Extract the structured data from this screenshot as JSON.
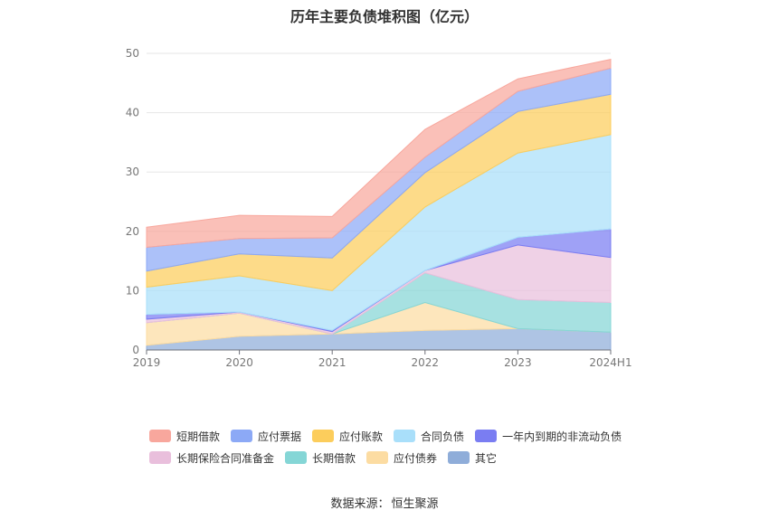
{
  "chart_data": {
    "type": "area",
    "stacked": true,
    "title": "历年主要负债堆积图（亿元）",
    "categories": [
      "2019",
      "2020",
      "2021",
      "2022",
      "2023",
      "2024H1"
    ],
    "ylim": [
      0,
      50
    ],
    "yticks": [
      0,
      10,
      20,
      30,
      40,
      50
    ],
    "grid": true,
    "legend_position": "bottom",
    "series": [
      {
        "name": "其它",
        "color": "#8fadd9",
        "values": [
          0.8,
          2.3,
          2.7,
          3.3,
          3.6,
          3.0
        ]
      },
      {
        "name": "应付债券",
        "color": "#fcdca2",
        "values": [
          3.8,
          3.9,
          0.0,
          4.7,
          0.0,
          0.0
        ]
      },
      {
        "name": "长期借款",
        "color": "#85d6d6",
        "values": [
          0.0,
          0.0,
          0.0,
          5.0,
          4.9,
          5.0
        ]
      },
      {
        "name": "长期保险合同准备金",
        "color": "#e9bfdc",
        "values": [
          0.6,
          0.2,
          0.4,
          0.4,
          9.2,
          7.6
        ]
      },
      {
        "name": "一年内到期的非流动负债",
        "color": "#7a7df2",
        "values": [
          0.8,
          0.0,
          0.2,
          0.0,
          1.3,
          4.8
        ]
      },
      {
        "name": "合同负债",
        "color": "#a9dffa",
        "values": [
          4.6,
          6.1,
          6.7,
          10.7,
          14.2,
          15.9
        ]
      },
      {
        "name": "应付账款",
        "color": "#fccd5c",
        "values": [
          2.7,
          3.7,
          5.5,
          5.8,
          7.0,
          6.8
        ]
      },
      {
        "name": "应付票据",
        "color": "#8ca9f6",
        "values": [
          4.0,
          2.6,
          3.4,
          2.6,
          3.4,
          4.4
        ]
      },
      {
        "name": "短期借款",
        "color": "#f8a79d",
        "values": [
          3.4,
          3.9,
          3.6,
          4.7,
          2.1,
          1.5
        ]
      }
    ]
  },
  "legend": {
    "row1": [
      "短期借款",
      "应付票据",
      "应付账款",
      "合同负债",
      "一年内到期的非流动负债"
    ],
    "row2": [
      "长期保险合同准备金",
      "长期借款",
      "应付债券",
      "其它"
    ],
    "colors": {
      "短期借款": "#f8a79d",
      "应付票据": "#8ca9f6",
      "应付账款": "#fccd5c",
      "合同负债": "#a9dffa",
      "一年内到期的非流动负债": "#7a7df2",
      "长期保险合同准备金": "#e9bfdc",
      "长期借款": "#85d6d6",
      "应付债券": "#fcdca2",
      "其它": "#8fadd9"
    }
  },
  "source": {
    "label": "数据来源：",
    "value": "恒生聚源"
  }
}
